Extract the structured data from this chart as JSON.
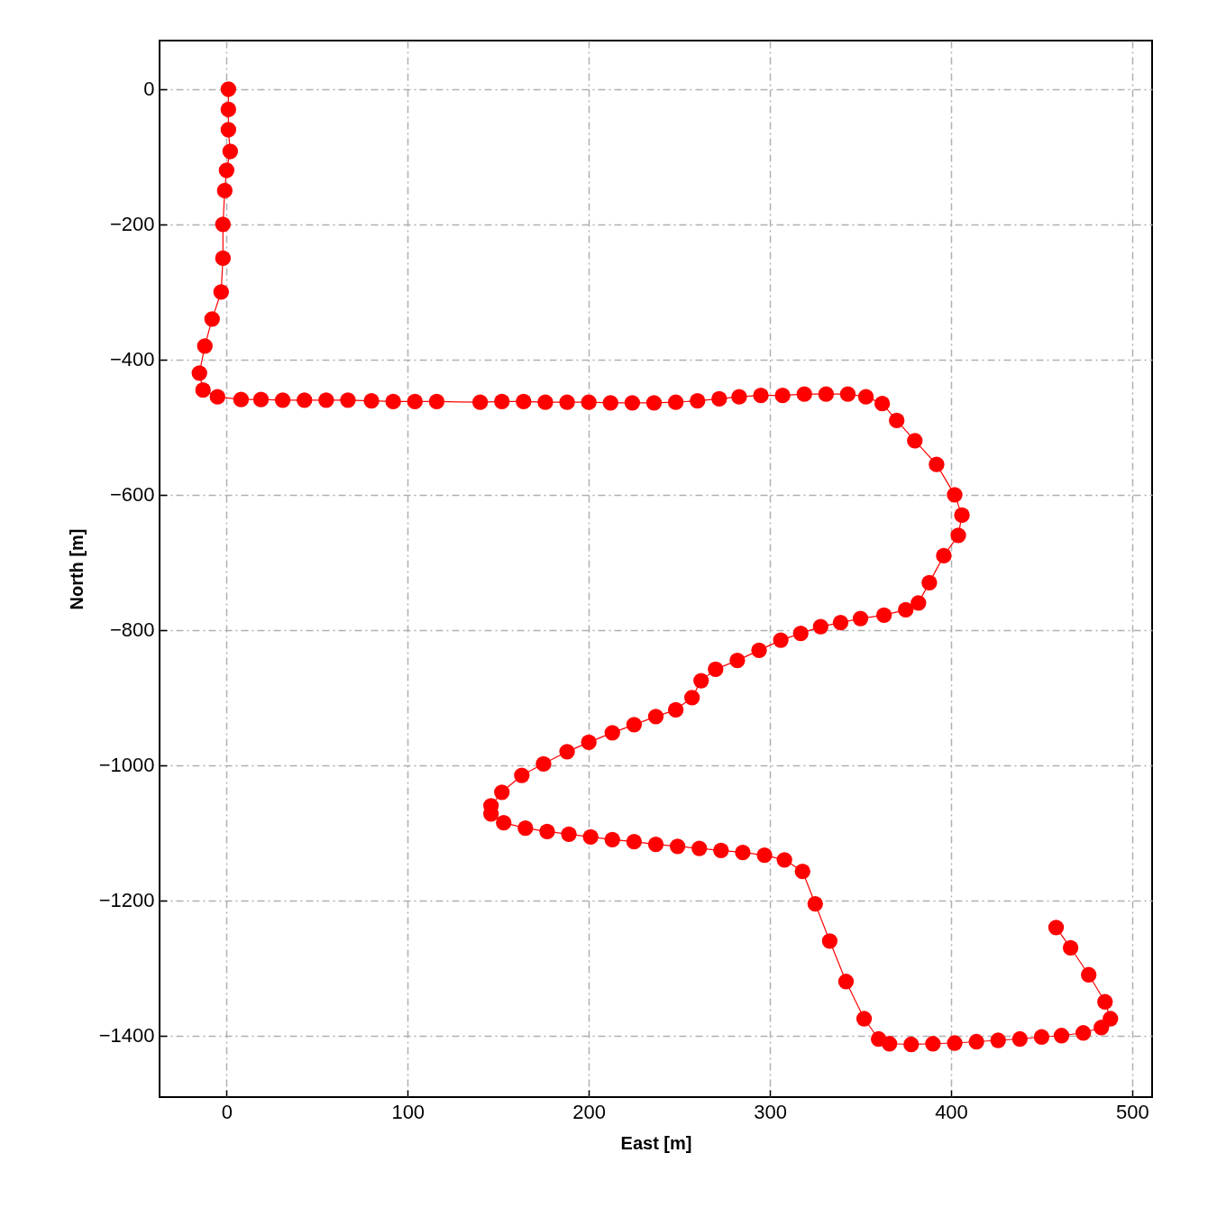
{
  "chart_data": {
    "type": "line",
    "xlabel": "East [m]",
    "ylabel": "North [m]",
    "marker": "circle",
    "line_style": "solid",
    "grid": true,
    "xlim": [
      -37,
      511
    ],
    "ylim": [
      -1491,
      72
    ],
    "xticks": [
      0,
      100,
      200,
      300,
      400,
      500
    ],
    "yticks": [
      0,
      -200,
      -400,
      -600,
      -800,
      -1000,
      -1200,
      -1400
    ],
    "series": [
      {
        "color": "#ff0000",
        "x": [
          1,
          1,
          1,
          2,
          0,
          -1,
          -2,
          -2,
          -3,
          -8,
          -12,
          -15,
          -13,
          -5,
          8,
          19,
          31,
          43,
          55,
          67,
          80,
          92,
          104,
          116,
          140,
          152,
          164,
          176,
          188,
          200,
          212,
          224,
          236,
          248,
          260,
          272,
          283,
          295,
          307,
          319,
          331,
          343,
          353,
          362,
          370,
          380,
          392,
          402,
          406,
          404,
          396,
          388,
          382,
          375,
          363,
          350,
          339,
          328,
          317,
          306,
          294,
          282,
          270,
          262,
          257,
          248,
          237,
          225,
          213,
          200,
          188,
          175,
          163,
          152,
          146,
          146,
          153,
          165,
          177,
          189,
          201,
          213,
          225,
          237,
          249,
          261,
          273,
          285,
          297,
          308,
          318,
          325,
          333,
          342,
          352,
          360,
          366,
          378,
          390,
          402,
          414,
          426,
          438,
          450,
          461,
          473,
          483,
          488,
          485,
          476,
          466,
          458
        ],
        "values": [
          0,
          -30,
          -60,
          -92,
          -120,
          -150,
          -200,
          -250,
          -300,
          -340,
          -380,
          -420,
          -445,
          -455,
          -459,
          -459,
          -460,
          -460,
          -460,
          -460,
          -461,
          -462,
          -462,
          -462,
          -463,
          -462,
          -462,
          -463,
          -463,
          -463,
          -464,
          -464,
          -464,
          -463,
          -461,
          -458,
          -455,
          -453,
          -453,
          -451,
          -451,
          -451,
          -455,
          -465,
          -490,
          -520,
          -555,
          -600,
          -630,
          -660,
          -690,
          -730,
          -760,
          -770,
          -778,
          -783,
          -789,
          -795,
          -805,
          -815,
          -830,
          -845,
          -858,
          -875,
          -900,
          -918,
          -928,
          -940,
          -952,
          -966,
          -980,
          -998,
          -1015,
          -1040,
          -1060,
          -1072,
          -1085,
          -1093,
          -1098,
          -1102,
          -1106,
          -1110,
          -1113,
          -1117,
          -1120,
          -1123,
          -1126,
          -1129,
          -1133,
          -1140,
          -1157,
          -1205,
          -1260,
          -1320,
          -1375,
          -1405,
          -1412,
          -1413,
          -1412,
          -1411,
          -1409,
          -1407,
          -1405,
          -1402,
          -1400,
          -1396,
          -1388,
          -1375,
          -1350,
          -1310,
          -1270,
          -1240
        ]
      }
    ]
  }
}
